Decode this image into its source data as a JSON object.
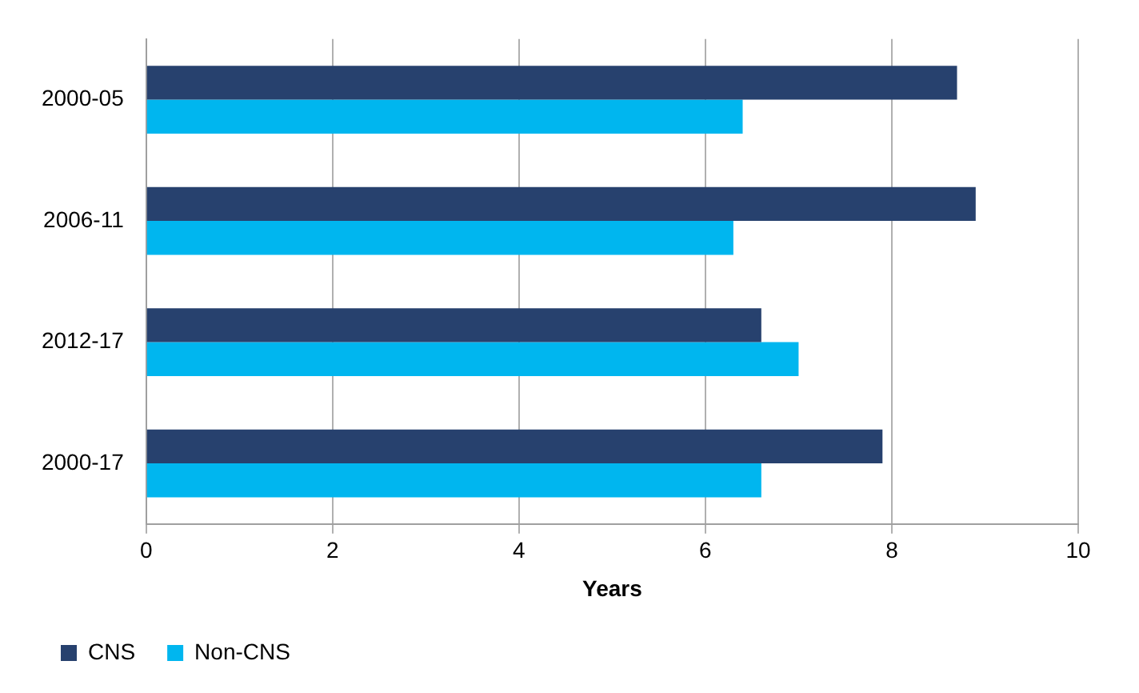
{
  "chart_data": {
    "type": "bar",
    "orientation": "horizontal",
    "xlabel": "Years",
    "categories": [
      "2000-05",
      "2006-11",
      "2012-17",
      "2000-17"
    ],
    "series": [
      {
        "name": "CNS",
        "color": "#27416e",
        "values": [
          8.7,
          8.9,
          6.6,
          7.9
        ]
      },
      {
        "name": "Non-CNS",
        "color": "#00b6ef",
        "values": [
          6.4,
          6.3,
          7.0,
          6.6
        ]
      }
    ],
    "xlim": [
      0,
      10
    ],
    "xticks": [
      0,
      2,
      4,
      6,
      8,
      10
    ],
    "grid": "x",
    "legend": "bottom left"
  }
}
